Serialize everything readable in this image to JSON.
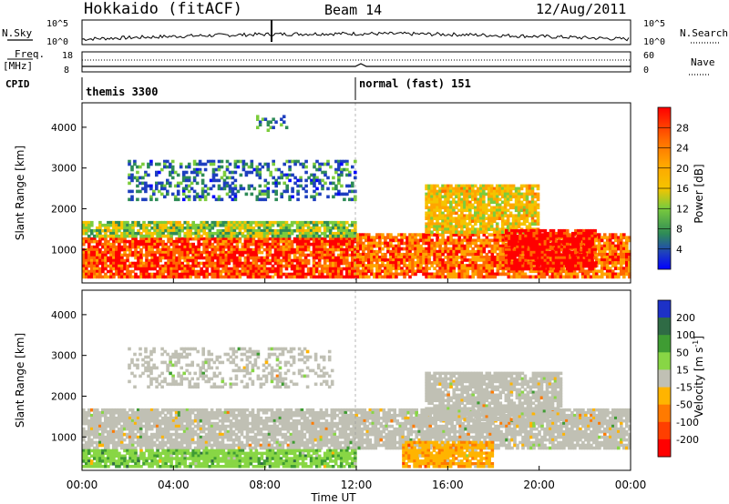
{
  "header": {
    "title": "Hokkaido (fitACF)",
    "beam": "Beam 14",
    "date": "12/Aug/2011"
  },
  "top_panels": {
    "nsky_label": "N.Sky",
    "nsearch_label": "N.Search",
    "freq_label": "Freq.",
    "freq_unit": "[MHz]",
    "nave_label": "Nave",
    "cpid_label": "CPID",
    "left_ticks_noise": [
      "10^5",
      "10^0"
    ],
    "right_ticks_noise": [
      "10^5",
      "10^0"
    ],
    "left_ticks_freq": [
      "18",
      "8"
    ],
    "right_ticks_nave": [
      "60",
      "0"
    ]
  },
  "cpid": {
    "segments": [
      {
        "label": "themis 3300",
        "start_hour": 0
      },
      {
        "label": "normal (fast) 151",
        "start_hour": 12
      }
    ]
  },
  "axes": {
    "ylabel": "Slant Range [km]",
    "xlabel": "Time UT",
    "x_tick_labels": [
      "00:00",
      "04:00",
      "08:00",
      "12:00",
      "16:00",
      "20:00",
      "00:00"
    ],
    "y_tick_labels": [
      "1000",
      "2000",
      "3000",
      "4000"
    ]
  },
  "colorbars": {
    "power": {
      "title": "Power [dB]",
      "labels": [
        "28",
        "24",
        "20",
        "16",
        "12",
        "8",
        "4"
      ],
      "colors": [
        "#ff0000",
        "#ff6a00",
        "#ffa500",
        "#f5c400",
        "#7ccc3c",
        "#2e8b57",
        "#1e3fbf",
        "#0000ff"
      ]
    },
    "velocity": {
      "title": "Velocity [m s",
      "title_sup": "-1",
      "title_end": "]",
      "labels": [
        "200",
        "100",
        "50",
        "15",
        "-15",
        "-50",
        "-100",
        "-200"
      ],
      "colors": [
        "#1d31c7",
        "#2f6b45",
        "#3f9c33",
        "#88d645",
        "#c0c0b4",
        "#ffb400",
        "#ff7a00",
        "#ff3f00",
        "#ff0000"
      ]
    }
  },
  "chart_data": [
    {
      "type": "heatmap",
      "title": "Power [dB]",
      "xlabel": "Time UT",
      "ylabel": "Slant Range [km]",
      "x_range_hours": [
        0,
        24
      ],
      "y_range_km": [
        180,
        4600
      ],
      "color_scale": [
        0,
        30
      ],
      "regions": [
        {
          "t0": 0,
          "t1": 12,
          "r0": 300,
          "r1": 1300,
          "value": 26
        },
        {
          "t0": 0,
          "t1": 12,
          "r0": 1300,
          "r1": 1700,
          "value": 14
        },
        {
          "t0": 2,
          "t1": 12,
          "r0": 2200,
          "r1": 3200,
          "value": 8
        },
        {
          "t0": 7.5,
          "t1": 9,
          "r0": 3900,
          "r1": 4300,
          "value": 10
        },
        {
          "t0": 12,
          "t1": 24,
          "r0": 300,
          "r1": 1400,
          "value": 24
        },
        {
          "t0": 15,
          "t1": 20,
          "r0": 1400,
          "r1": 2600,
          "value": 18
        },
        {
          "t0": 18.5,
          "t1": 22.5,
          "r0": 500,
          "r1": 1500,
          "value": 29
        }
      ]
    },
    {
      "type": "heatmap",
      "title": "Velocity [m s-1]",
      "xlabel": "Time UT",
      "ylabel": "Slant Range [km]",
      "x_range_hours": [
        0,
        24
      ],
      "y_range_km": [
        180,
        4600
      ],
      "color_scale": [
        -200,
        200
      ],
      "regions": [
        {
          "t0": 0,
          "t1": 24,
          "r0": 700,
          "r1": 1700,
          "value": 0
        },
        {
          "t0": 0,
          "t1": 12,
          "r0": 250,
          "r1": 700,
          "value": 60
        },
        {
          "t0": 14,
          "t1": 18,
          "r0": 250,
          "r1": 900,
          "value": -60
        },
        {
          "t0": 2,
          "t1": 11,
          "r0": 2200,
          "r1": 3200,
          "value": 0
        },
        {
          "t0": 15,
          "t1": 21,
          "r0": 1400,
          "r1": 2600,
          "value": 0
        }
      ]
    }
  ]
}
